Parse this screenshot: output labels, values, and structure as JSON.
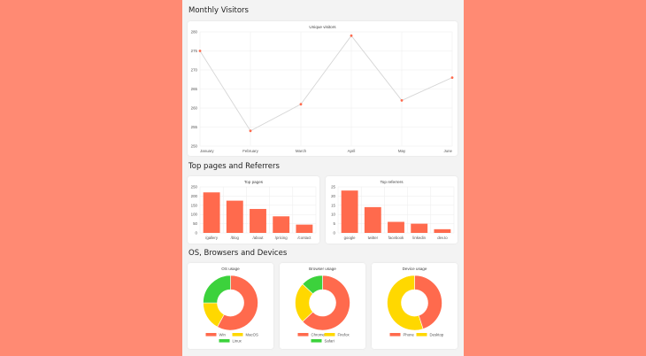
{
  "sections": {
    "visitors": "Monthly Visitors",
    "pages": "Top pages and Referrers",
    "os": "OS, Browsers and Devices"
  },
  "colors": {
    "red": "#ff6a4d",
    "yellow": "#ffd800",
    "green": "#3cd23c",
    "line": "#d6d6d6"
  },
  "chart_data": [
    {
      "id": "visitors",
      "type": "line",
      "title": "Unique visitors",
      "categories": [
        "January",
        "February",
        "March",
        "April",
        "May",
        "June"
      ],
      "values": [
        275,
        254,
        261,
        279,
        262,
        268
      ],
      "ylim": [
        250,
        280
      ],
      "yticks": [
        250,
        255,
        260,
        265,
        270,
        275,
        280
      ],
      "grid": true
    },
    {
      "id": "top-pages",
      "type": "bar",
      "title": "Top pages",
      "categories": [
        "/gallery",
        "/blog",
        "/about",
        "/pricing",
        "/contact"
      ],
      "values": [
        220,
        175,
        130,
        90,
        45
      ],
      "ylim": [
        0,
        250
      ],
      "yticks": [
        0,
        50,
        100,
        150,
        200,
        250
      ],
      "grid": true
    },
    {
      "id": "top-referrers",
      "type": "bar",
      "title": "Top referrers",
      "categories": [
        "google",
        "twitter",
        "facebook",
        "linkedin",
        "dev.to"
      ],
      "values": [
        23,
        14,
        6,
        5,
        2
      ],
      "ylim": [
        0,
        25
      ],
      "yticks": [
        0,
        5,
        10,
        15,
        20,
        25
      ],
      "grid": true
    },
    {
      "id": "os-usage",
      "type": "pie",
      "title": "OS usage",
      "labels": [
        "Win",
        "MacOS",
        "Linux"
      ],
      "values": [
        58,
        17,
        25
      ],
      "legend": "bottom"
    },
    {
      "id": "browser-usage",
      "type": "pie",
      "title": "Browser usage",
      "labels": [
        "Chrome",
        "Firefox",
        "Safari"
      ],
      "values": [
        63,
        24,
        13
      ],
      "legend": "bottom"
    },
    {
      "id": "device-usage",
      "type": "pie",
      "title": "Device usage",
      "labels": [
        "Phone",
        "Desktop"
      ],
      "values": [
        45,
        55
      ],
      "legend": "bottom"
    }
  ]
}
